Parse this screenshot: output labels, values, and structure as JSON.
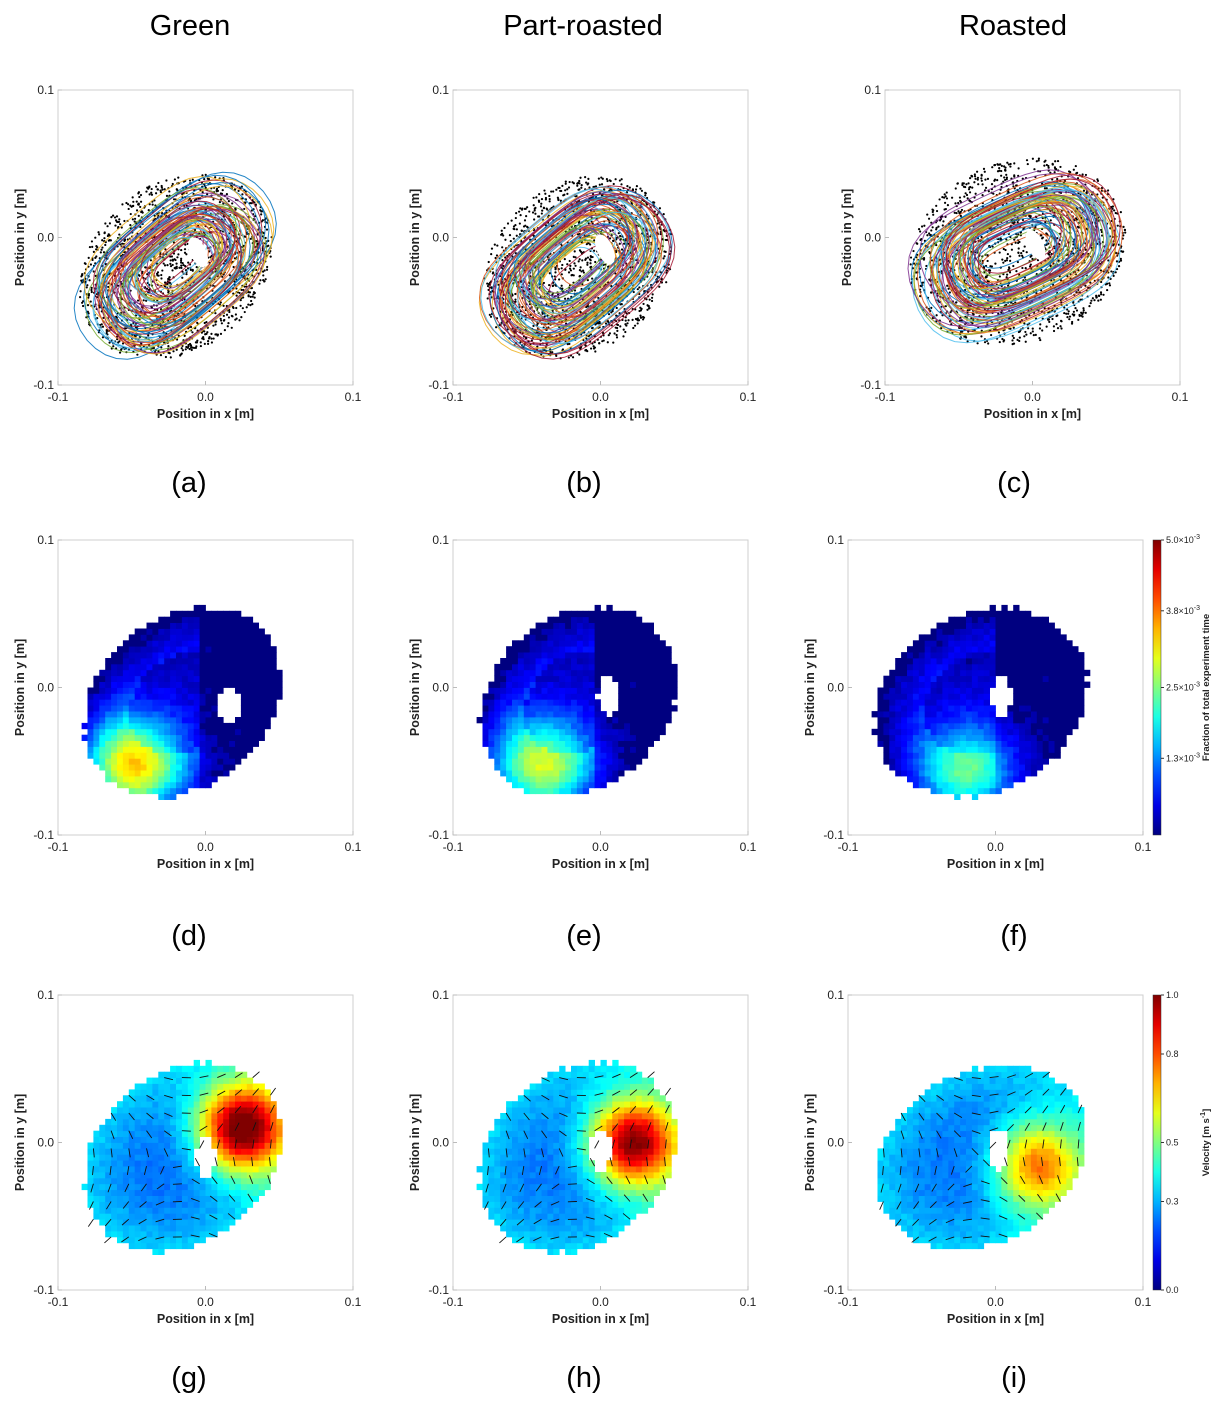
{
  "columns": [
    "Green",
    "Part-roasted",
    "Roasted"
  ],
  "panel_labels": [
    "(a)",
    "(b)",
    "(c)",
    "(d)",
    "(e)",
    "(f)",
    "(g)",
    "(h)",
    "(i)"
  ],
  "colors": {
    "trajectory_background": "#000000",
    "cold": "#00008f",
    "hot": "#800000"
  },
  "chart_data": [
    {
      "panel": "(a)",
      "type": "scatter",
      "subtype": "particle-trajectories",
      "material": "Green",
      "xlabel": "Position in x [m]",
      "ylabel": "Position in y [m]",
      "xlim": [
        -0.1,
        0.1
      ],
      "ylim": [
        -0.1,
        0.1
      ],
      "xticks": [
        "-0.1",
        "0.0",
        "0.1"
      ],
      "yticks": [
        "-0.1",
        "0.0",
        "0.1"
      ],
      "cloud": {
        "cx": -0.02,
        "cy": -0.02,
        "rx": 0.07,
        "ry": 0.055,
        "rotation_deg": 40
      },
      "hole": {
        "x": -0.005,
        "y": -0.01
      }
    },
    {
      "panel": "(b)",
      "type": "scatter",
      "subtype": "particle-trajectories",
      "material": "Part-roasted",
      "xlabel": "Position in x [m]",
      "ylabel": "Position in y [m]",
      "xlim": [
        -0.1,
        0.1
      ],
      "ylim": [
        -0.1,
        0.1
      ],
      "xticks": [
        "-0.1",
        "0.0",
        "0.1"
      ],
      "yticks": [
        "-0.1",
        "0.0",
        "0.1"
      ],
      "cloud": {
        "cx": -0.015,
        "cy": -0.02,
        "rx": 0.068,
        "ry": 0.055,
        "rotation_deg": 40
      },
      "hole": {
        "x": 0.003,
        "y": -0.008
      }
    },
    {
      "panel": "(c)",
      "type": "scatter",
      "subtype": "particle-trajectories",
      "material": "Roasted",
      "xlabel": "Position in x [m]",
      "ylabel": "Position in y [m]",
      "xlim": [
        -0.1,
        0.1
      ],
      "ylim": [
        -0.1,
        0.1
      ],
      "xticks": [
        "-0.1",
        "0.0",
        "0.1"
      ],
      "yticks": [
        "-0.1",
        "0.0",
        "0.1"
      ],
      "cloud": {
        "cx": -0.01,
        "cy": -0.01,
        "rx": 0.074,
        "ry": 0.06,
        "rotation_deg": 25
      },
      "hole": {
        "x": 0.002,
        "y": -0.005
      }
    },
    {
      "panel": "(d)",
      "type": "heatmap",
      "quantity": "occupancy",
      "material": "Green",
      "xlabel": "Position in x [m]",
      "ylabel": "Position in y [m]",
      "xlim": [
        -0.1,
        0.1
      ],
      "ylim": [
        -0.1,
        0.1
      ],
      "xticks": [
        "-0.1",
        "0.0",
        "0.1"
      ],
      "yticks": [
        "-0.1",
        "0.0",
        "0.1"
      ],
      "domain": {
        "cx": -0.015,
        "cy": -0.01,
        "rx": 0.073,
        "ry": 0.057,
        "rotation_deg": 40
      },
      "hotspot": {
        "cx": -0.05,
        "cy": -0.055,
        "peak_fraction": 0.6
      },
      "hole": {
        "x": 0.016,
        "y": -0.012
      }
    },
    {
      "panel": "(e)",
      "type": "heatmap",
      "quantity": "occupancy",
      "material": "Part-roasted",
      "xlabel": "Position in x [m]",
      "ylabel": "Position in y [m]",
      "xlim": [
        -0.1,
        0.1
      ],
      "ylim": [
        -0.1,
        0.1
      ],
      "xticks": [
        "-0.1",
        "0.0",
        "0.1"
      ],
      "yticks": [
        "-0.1",
        "0.0",
        "0.1"
      ],
      "domain": {
        "cx": -0.015,
        "cy": -0.01,
        "rx": 0.072,
        "ry": 0.058,
        "rotation_deg": 40
      },
      "hotspot": {
        "cx": -0.04,
        "cy": -0.055,
        "peak_fraction": 0.5
      },
      "hole": {
        "x": 0.005,
        "y": -0.005
      }
    },
    {
      "panel": "(f)",
      "type": "heatmap",
      "quantity": "occupancy",
      "material": "Roasted",
      "xlabel": "Position in x [m]",
      "ylabel": "Position in y [m]",
      "xlim": [
        -0.1,
        0.1
      ],
      "ylim": [
        -0.1,
        0.1
      ],
      "xticks": [
        "-0.1",
        "0.0",
        "0.1"
      ],
      "yticks": [
        "-0.1",
        "0.0",
        "0.1"
      ],
      "domain": {
        "cx": -0.01,
        "cy": -0.01,
        "rx": 0.075,
        "ry": 0.06,
        "rotation_deg": 30
      },
      "hotspot": {
        "cx": -0.02,
        "cy": -0.06,
        "peak_fraction": 0.4
      },
      "hole": {
        "x": 0.004,
        "y": -0.006
      },
      "colorbar": {
        "label": "Fraction of total experiment time",
        "min": 0,
        "max": 0.005,
        "ticks": [
          {
            "value": 0.0013,
            "label": "1.3×10"
          },
          {
            "value": 0.0025,
            "label": "2.5×10"
          },
          {
            "value": 0.0038,
            "label": "3.8×10"
          },
          {
            "value": 0.005,
            "label": "5.0×10"
          }
        ],
        "exponent": "-3"
      }
    },
    {
      "panel": "(g)",
      "type": "heatmap",
      "quantity": "velocity",
      "material": "Green",
      "xlabel": "Position in x [m]",
      "ylabel": "Position in y [m]",
      "xlim": [
        -0.1,
        0.1
      ],
      "ylim": [
        -0.1,
        0.1
      ],
      "xticks": [
        "-0.1",
        "0.0",
        "0.1"
      ],
      "yticks": [
        "-0.1",
        "0.0",
        "0.1"
      ],
      "domain": {
        "cx": -0.015,
        "cy": -0.01,
        "rx": 0.073,
        "ry": 0.057,
        "rotation_deg": 40
      },
      "hotspot": {
        "cx": 0.025,
        "cy": 0.01,
        "peak_velocity": 1.0
      },
      "hole": {
        "x": 0.0,
        "y": -0.01
      }
    },
    {
      "panel": "(h)",
      "type": "heatmap",
      "quantity": "velocity",
      "material": "Part-roasted",
      "xlabel": "Position in x [m]",
      "ylabel": "Position in y [m]",
      "xlim": [
        -0.1,
        0.1
      ],
      "ylim": [
        -0.1,
        0.1
      ],
      "xticks": [
        "-0.1",
        "0.0",
        "0.1"
      ],
      "yticks": [
        "-0.1",
        "0.0",
        "0.1"
      ],
      "domain": {
        "cx": -0.015,
        "cy": -0.01,
        "rx": 0.072,
        "ry": 0.058,
        "rotation_deg": 40
      },
      "hotspot": {
        "cx": 0.022,
        "cy": 0.0,
        "peak_velocity": 0.95
      },
      "hole": {
        "x": 0.0,
        "y": -0.005
      }
    },
    {
      "panel": "(i)",
      "type": "heatmap",
      "quantity": "velocity",
      "material": "Roasted",
      "xlabel": "Position in x [m]",
      "ylabel": "Position in y [m]",
      "xlim": [
        -0.1,
        0.1
      ],
      "ylim": [
        -0.1,
        0.1
      ],
      "xticks": [
        "-0.1",
        "0.0",
        "0.1"
      ],
      "yticks": [
        "-0.1",
        "0.0",
        "0.1"
      ],
      "domain": {
        "cx": -0.01,
        "cy": -0.01,
        "rx": 0.075,
        "ry": 0.058,
        "rotation_deg": 30
      },
      "hotspot": {
        "cx": 0.028,
        "cy": -0.015,
        "peak_velocity": 0.7
      },
      "hole": {
        "x": 0.002,
        "y": -0.005
      },
      "colorbar": {
        "label": "Velocity  [m s",
        "label_exponent": "-1",
        "label_close": "]",
        "min": 0.0,
        "max": 1.0,
        "ticks": [
          {
            "value": 0.0,
            "label": "0.0"
          },
          {
            "value": 0.3,
            "label": "0.3"
          },
          {
            "value": 0.5,
            "label": "0.5"
          },
          {
            "value": 0.8,
            "label": "0.8"
          },
          {
            "value": 1.0,
            "label": "1.0"
          }
        ]
      }
    }
  ]
}
